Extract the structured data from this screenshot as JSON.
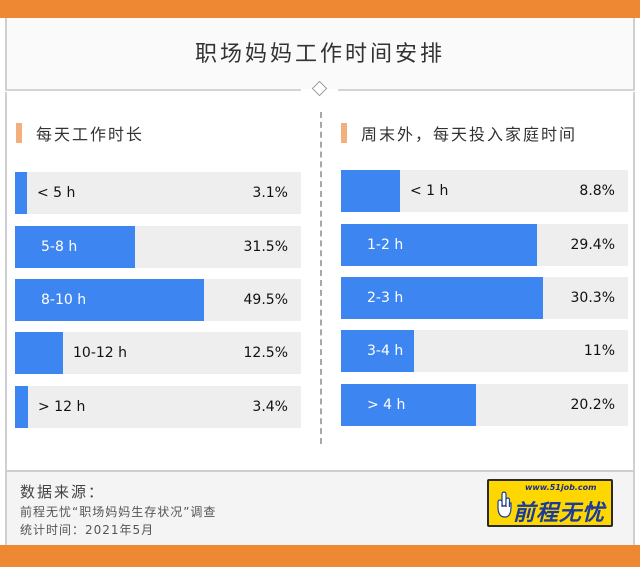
{
  "title": "职场妈妈工作时间安排",
  "colors": {
    "accent_orange": "#ef8833",
    "bar_blue": "#3d86f2",
    "track_grey": "#eeeeee",
    "marker": "#f2b07f"
  },
  "chart_data": [
    {
      "type": "bar",
      "title": "每天工作时长",
      "categories": [
        "< 5 h",
        "5-8 h",
        "8-10 h",
        "10-12 h",
        "> 12 h"
      ],
      "values": [
        3.1,
        31.5,
        49.5,
        12.5,
        3.4
      ],
      "value_labels": [
        "3.1%",
        "31.5%",
        "49.5%",
        "12.5%",
        "3.4%"
      ],
      "xlim": [
        0,
        75
      ],
      "unit": "%"
    },
    {
      "type": "bar",
      "title": "周末外，每天投入家庭时间",
      "categories": [
        "< 1 h",
        "1-2 h",
        "2-3 h",
        "3-4 h",
        "> 4 h"
      ],
      "values": [
        8.8,
        29.4,
        30.3,
        11,
        20.2
      ],
      "value_labels": [
        "8.8%",
        "29.4%",
        "30.3%",
        "11%",
        "20.2%"
      ],
      "xlim": [
        0,
        43
      ],
      "unit": "%"
    }
  ],
  "footer": {
    "source_label": "数据来源：",
    "source_line1": "前程无忧“职场妈妈生存状况”调查",
    "source_line2": "统计时间：2021年5月"
  },
  "logo": {
    "url": "www.51job.com",
    "name": "前程无忧",
    "icon": "hand-icon"
  }
}
